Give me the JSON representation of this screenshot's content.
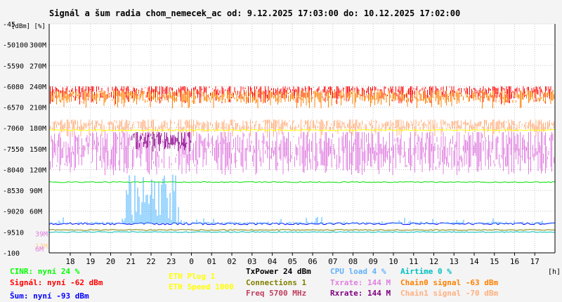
{
  "chart_data": {
    "type": "line",
    "title": "Signál a šum radia chom_nemecek_ac od: 9.12.2025 17:03:00 do: 10.12.2025 17:02:00",
    "y_unit_label": "[dBm] [%]",
    "x_unit_label": "[h]",
    "x_ticks": [
      "18",
      "19",
      "20",
      "21",
      "22",
      "23",
      "0",
      "01",
      "02",
      "03",
      "04",
      "05",
      "06",
      "07",
      "08",
      "09",
      "10",
      "11",
      "12",
      "13",
      "14",
      "15",
      "16",
      "17"
    ],
    "y_axis_dbm": [
      "-45",
      "-50",
      "-55",
      "-60",
      "-65",
      "-70",
      "-75",
      "-80",
      "-85",
      "-90",
      "-95",
      "-100"
    ],
    "y_axis_pct": [
      "100",
      "90",
      "80",
      "70",
      "60",
      "50",
      "40",
      "30",
      "20",
      "10"
    ],
    "y_axis_rate": [
      "300M",
      "270M",
      "240M",
      "210M",
      "180M",
      "150M",
      "120M",
      "90M",
      "60M"
    ],
    "y_axis_rate_colored": [
      {
        "label": "39M",
        "color": "#e080e0",
        "value": 39
      },
      {
        "label": "13M",
        "color": "#ffd090",
        "value": 13
      },
      {
        "label": "6M",
        "color": "#e080e0",
        "value": 6
      }
    ],
    "ylim_dbm": [
      -100,
      -45
    ],
    "grid": true,
    "series": [
      {
        "name": "Signál",
        "color": "#ff0000",
        "level_dbm": -62,
        "range_dbm": [
          -63,
          -60
        ],
        "style": "band"
      },
      {
        "name": "Chain0 signal",
        "color": "#ff8000",
        "level_dbm": -63,
        "range_dbm": [
          -64,
          -61
        ],
        "style": "band"
      },
      {
        "name": "Chain1 signal",
        "color": "#ffb080",
        "level_dbm": -70,
        "range_dbm": [
          -71,
          -68
        ],
        "style": "band"
      },
      {
        "name": "Txrate",
        "color": "#e080e0",
        "level_pct": 40,
        "range_pct": [
          30,
          48
        ],
        "style": "band"
      },
      {
        "name": "Rxrate",
        "color": "#800080",
        "level_pct": 45,
        "range_pct": [
          40,
          48
        ],
        "style": "segment",
        "from_h": 21,
        "to_h": 24
      },
      {
        "name": "CINR",
        "color": "#00e000",
        "level_pct": 24,
        "style": "line"
      },
      {
        "name": "Šum",
        "color": "#0000ff",
        "level_dbm": -93,
        "style": "line"
      },
      {
        "name": "Connections",
        "color": "#808000",
        "level_pct": 1,
        "style": "line"
      },
      {
        "name": "CPU load",
        "color": "#40b0ff",
        "level_pct": 4,
        "style": "spikes"
      },
      {
        "name": "ETH Speed",
        "color": "#ffff00",
        "level_pct": 49,
        "style": "line"
      },
      {
        "name": "Airtime",
        "color": "#00c0c0",
        "level_pct": 0,
        "style": "line"
      }
    ]
  },
  "legend": [
    {
      "text": "CINR: nyní 24 %",
      "color": "#00ff00"
    },
    {
      "text": "Signál: nyní -62 dBm",
      "color": "#ff0000"
    },
    {
      "text": "Šum: nyní -93 dBm",
      "color": "#0000ff"
    },
    {
      "text": "ETH Plug 1",
      "color": "#ffff00"
    },
    {
      "text": "ETH Speed 1000",
      "color": "#ffff00"
    },
    {
      "text": "TxPower 24 dBm",
      "color": "#000000"
    },
    {
      "text": "Connections 1",
      "color": "#808000"
    },
    {
      "text": "Freq 5700 MHz",
      "color": "#c04060"
    },
    {
      "text": "CPU load 4 %",
      "color": "#60b0ff"
    },
    {
      "text": "Txrate: 144 M",
      "color": "#e080e0"
    },
    {
      "text": "Rxrate: 144 M",
      "color": "#800080"
    },
    {
      "text": "Airtime 0 %",
      "color": "#00c0c0"
    },
    {
      "text": "Chain0 signal -63 dBm",
      "color": "#ff8000"
    },
    {
      "text": "Chain1 signal -70 dBm",
      "color": "#ffb080"
    }
  ]
}
